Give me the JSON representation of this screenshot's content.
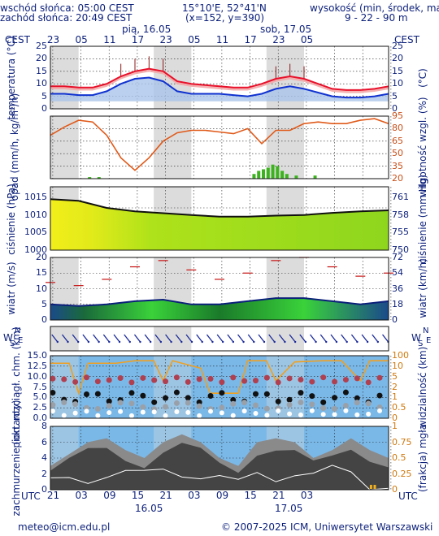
{
  "header": {
    "sunrise": "wschód słońca: 05:00 CEST",
    "sunset": "zachód słońca: 20:49 CEST",
    "coords": "15°10'E, 52°41'N",
    "grid": "(x=152,  y=390)",
    "height_title": "wysokość (min, środek, max)",
    "height_values": "9 - 22 - 90 m",
    "day1": "pią, 16.05",
    "day2": "sob, 17.05",
    "tz_left": "CEST",
    "tz_right": "CEST"
  },
  "top_hours": [
    "23",
    "05",
    "11",
    "17",
    "23",
    "05",
    "11",
    "17",
    "23",
    "05"
  ],
  "bottom_hours": [
    "21",
    "03",
    "09",
    "15",
    "21",
    "03",
    "09",
    "15",
    "21",
    "03"
  ],
  "bottom": {
    "utc_left": "UTC",
    "utc_right": "UTC",
    "date1": "16.05",
    "date2": "17.05",
    "contact": "meteo@icm.edu.pl",
    "copyright": "© 2007-2025 ICM, Uniwersytet Warszawski"
  },
  "panels": {
    "temperature": {
      "label_left": "temperatura (°C)",
      "label_right": "(°C)",
      "ticks": [
        "25",
        "20",
        "15",
        "10",
        "5",
        "0"
      ]
    },
    "precip": {
      "label_left": "opad (mm/h, kg/m²/h)",
      "label_right": "wilgotność wzgl. (%)",
      "ticks_right": [
        "95",
        "80",
        "65",
        "50",
        "35",
        "20"
      ]
    },
    "pressure": {
      "label_left": "ciśnienie (hPa)",
      "label_right": "ciśnienie (mm Hg)",
      "ticks_left": [
        "1015",
        "1010",
        "1005",
        "1000"
      ],
      "ticks_right": [
        "761",
        "758",
        "755",
        "750"
      ]
    },
    "wind": {
      "label_left": "wiatr (m/s)",
      "label_right": "wiatr (km/h)",
      "ticks_left": [
        "20",
        "15",
        "10",
        "5",
        "0"
      ],
      "ticks_right": [
        "72",
        "54",
        "36",
        "18",
        "0"
      ]
    },
    "direction": {
      "compass_left": {
        "n": "N",
        "w": "W",
        "s": "S",
        "e": "E"
      },
      "compass_right": {
        "n": "N",
        "w": "W",
        "s": "S",
        "e": "E"
      }
    },
    "visibility": {
      "label_left": "pion. rozciągł. chm. (km)",
      "label_right": "widzialność (km)",
      "ticks_left": [
        "15.0",
        "12.5",
        "10.0",
        "7.5",
        "5.0",
        "2.5",
        "0.0"
      ],
      "ticks_right": [
        "100",
        "10",
        "5",
        "2",
        "1",
        "0.5",
        "0"
      ]
    },
    "clouds": {
      "label_left": "zachmurzenie (oktanty)",
      "label_right": "(frakcja) mgła",
      "ticks_left": [
        "8",
        "6",
        "4",
        "2",
        "0"
      ],
      "ticks_right": [
        "1",
        "0.75",
        "0.5",
        "0.25",
        "0"
      ]
    }
  },
  "colors": {
    "axis_text": "#0b1f7a",
    "temp_red": "#e8102a",
    "temp_blue": "#1032d0",
    "humidity": "#e05a1a",
    "precip": "#3cb31e",
    "pressure_line": "#101010",
    "wind_gust": "#c81414"
  },
  "chart_data": {
    "type": "line",
    "x_unit": "hours from 23 CEST, 15.05",
    "temperature": {
      "x": [
        0,
        3,
        6,
        9,
        12,
        15,
        18,
        21,
        24,
        27,
        30,
        33,
        36,
        39,
        42,
        45,
        48,
        51,
        54,
        57,
        60,
        63,
        66,
        69,
        72
      ],
      "series": [
        {
          "name": "",
          "values": [
            9,
            9,
            8.5,
            8.5,
            10,
            13,
            15,
            16,
            15,
            11,
            10,
            9.5,
            9,
            8.5,
            8.5,
            10,
            12,
            13,
            12,
            10,
            8,
            7.5,
            7.5,
            8,
            9
          ]
        },
        {
          "name": "",
          "values": [
            6,
            6,
            5.5,
            5.5,
            7,
            10,
            12,
            12.5,
            11,
            7,
            6,
            6,
            6,
            5.5,
            5,
            6,
            8,
            9,
            8,
            6.5,
            5,
            4.5,
            4.5,
            5,
            6
          ]
        }
      ]
    },
    "humidity": {
      "x": [
        0,
        3,
        6,
        9,
        12,
        15,
        18,
        21,
        24,
        27,
        30,
        33,
        36,
        39,
        42,
        45,
        48,
        51,
        54,
        57,
        60,
        63,
        66,
        69,
        72
      ],
      "values": [
        72,
        82,
        90,
        88,
        72,
        45,
        30,
        45,
        65,
        75,
        78,
        78,
        76,
        74,
        80,
        62,
        78,
        78,
        86,
        88,
        86,
        86,
        90,
        92,
        86
      ]
    },
    "pressure": {
      "x": [
        0,
        6,
        12,
        18,
        24,
        30,
        36,
        42,
        48,
        54,
        60,
        66,
        72
      ],
      "values": [
        1014.5,
        1014,
        1012,
        1011,
        1010.5,
        1010,
        1009.5,
        1009.5,
        1009.8,
        1010,
        1010.6,
        1011,
        1011.3
      ]
    },
    "wind": {
      "x": [
        0,
        6,
        12,
        18,
        24,
        30,
        36,
        42,
        48,
        54,
        60,
        66,
        72
      ],
      "mean": [
        5,
        4.5,
        5,
        6,
        6.5,
        5,
        5,
        6,
        7,
        7,
        6,
        5,
        6
      ],
      "gust": [
        12,
        11,
        13,
        17,
        19,
        16,
        13,
        15,
        19,
        20,
        17,
        14,
        15
      ]
    },
    "clouds": {
      "x": [
        0,
        4,
        8,
        12,
        16,
        20,
        24,
        28,
        32,
        36,
        40,
        44,
        48,
        52,
        56,
        60,
        64,
        68,
        72
      ],
      "values": [
        3,
        4.5,
        6,
        6.5,
        5,
        4,
        6,
        7,
        6,
        4,
        3,
        6,
        6.5,
        6,
        4,
        5,
        6.5,
        5,
        4
      ]
    }
  }
}
